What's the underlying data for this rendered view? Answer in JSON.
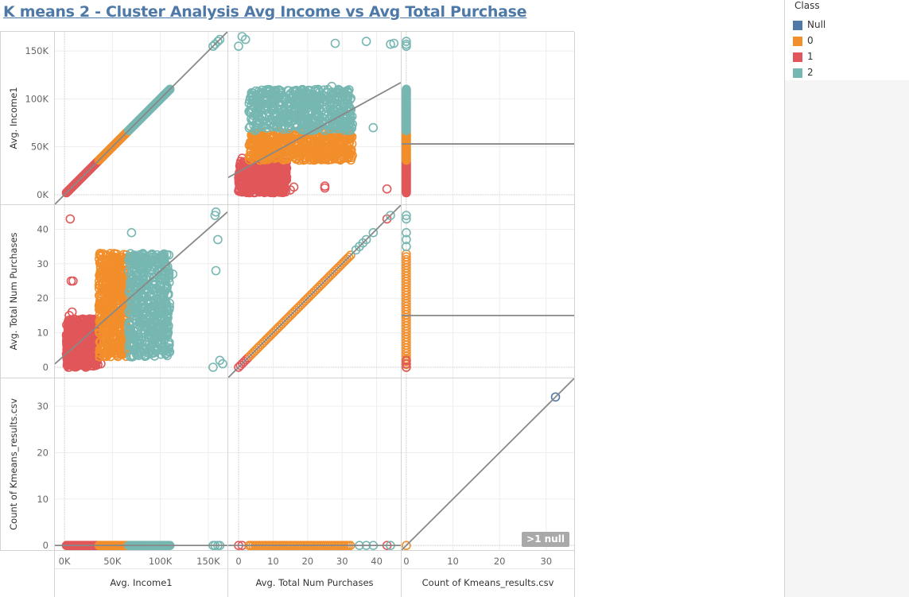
{
  "title": "K means 2 - Cluster Analysis Avg Income vs Avg Total Purchase",
  "legend": {
    "title": "Class",
    "items": [
      {
        "label": "Null",
        "color": "#4e79a7"
      },
      {
        "label": "0",
        "color": "#f28e2b"
      },
      {
        "label": "1",
        "color": "#e15759"
      },
      {
        "label": "2",
        "color": "#76b7b2"
      }
    ]
  },
  "null_badge": ">1 null",
  "chart_data": {
    "type": "scatter",
    "subtype": "scatter-plot-matrix",
    "marker": "open-circle",
    "trend_lines": true,
    "grid": true,
    "legend_position": "top-right",
    "variables": [
      {
        "label": "Avg. Income1",
        "ticks": [
          "0K",
          "50K",
          "100K",
          "150K"
        ],
        "tick_values": [
          0,
          50000,
          100000,
          150000
        ],
        "range": [
          -10000,
          170000
        ]
      },
      {
        "label": "Avg. Total Num Purchases",
        "ticks": [
          "0",
          "10",
          "20",
          "30",
          "40"
        ],
        "tick_values": [
          0,
          10,
          20,
          30,
          40
        ],
        "range": [
          -3,
          47
        ]
      },
      {
        "label": "Count of Kmeans_results.csv",
        "ticks": [
          "0",
          "10",
          "20",
          "30"
        ],
        "tick_values": [
          0,
          10,
          20,
          30
        ],
        "range": [
          -1,
          36
        ]
      }
    ],
    "clusters": [
      {
        "class": "1",
        "color": "#e15759",
        "income_range": [
          2000,
          35000
        ],
        "purchases_range": [
          0,
          14
        ],
        "outliers": [
          [
            6000,
            43
          ],
          [
            7000,
            25
          ],
          [
            9000,
            25
          ],
          [
            5000,
            15
          ],
          [
            8000,
            16
          ],
          [
            50000,
            9
          ],
          [
            55000,
            7
          ],
          [
            30000,
            2
          ],
          [
            38000,
            1
          ],
          [
            3000,
            1
          ],
          [
            4000,
            0
          ]
        ]
      },
      {
        "class": "0",
        "color": "#f28e2b",
        "income_range": [
          36000,
          66000
        ],
        "purchases_range": [
          3,
          33
        ]
      },
      {
        "class": "2",
        "color": "#76b7b2",
        "income_range": [
          67000,
          110000
        ],
        "purchases_range": [
          3,
          33
        ],
        "outliers": [
          [
            155000,
            0
          ],
          [
            157000,
            44
          ],
          [
            160000,
            37
          ],
          [
            158000,
            28
          ],
          [
            162000,
            2
          ],
          [
            165000,
            1
          ],
          [
            70000,
            39
          ],
          [
            113000,
            27
          ],
          [
            158000,
            45
          ]
        ]
      },
      {
        "class": "Null",
        "color": "#4e79a7",
        "count": 32
      }
    ]
  }
}
